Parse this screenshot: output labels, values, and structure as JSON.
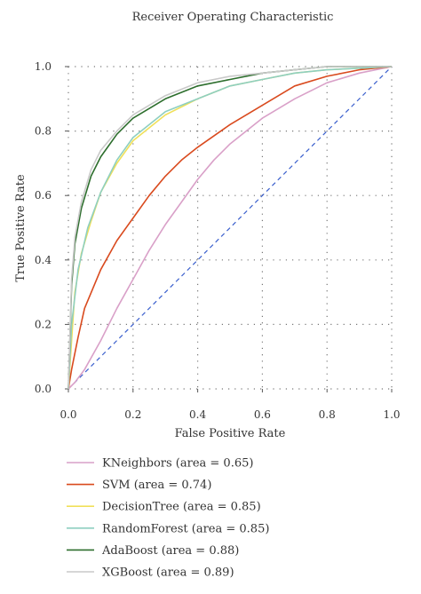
{
  "chart_data": {
    "type": "line",
    "title": "Receiver Operating Characteristic",
    "xlabel": "False Positive Rate",
    "ylabel": "True Positive Rate",
    "xlim": [
      0,
      1
    ],
    "ylim": [
      0,
      1
    ],
    "x_ticks": [
      "0.0",
      "0.2",
      "0.4",
      "0.6",
      "0.8",
      "1.0"
    ],
    "y_ticks": [
      "0.0",
      "0.2",
      "0.4",
      "0.6",
      "0.8",
      "1.0"
    ],
    "grid": "dotted",
    "legend_position": "below",
    "diagonal_color": "#3a5fcd",
    "series": [
      {
        "name": "KNeighbors (area = 0.65)",
        "color": "#d9a0c8",
        "points": [
          [
            0,
            0
          ],
          [
            0.02,
            0.02
          ],
          [
            0.05,
            0.06
          ],
          [
            0.1,
            0.15
          ],
          [
            0.15,
            0.25
          ],
          [
            0.2,
            0.34
          ],
          [
            0.25,
            0.43
          ],
          [
            0.3,
            0.51
          ],
          [
            0.35,
            0.58
          ],
          [
            0.4,
            0.65
          ],
          [
            0.45,
            0.71
          ],
          [
            0.5,
            0.76
          ],
          [
            0.6,
            0.84
          ],
          [
            0.7,
            0.9
          ],
          [
            0.8,
            0.95
          ],
          [
            0.9,
            0.98
          ],
          [
            1,
            1
          ]
        ]
      },
      {
        "name": "SVM (area = 0.74)",
        "color": "#d94a1e",
        "points": [
          [
            0,
            0
          ],
          [
            0.01,
            0.06
          ],
          [
            0.03,
            0.16
          ],
          [
            0.05,
            0.25
          ],
          [
            0.1,
            0.37
          ],
          [
            0.15,
            0.46
          ],
          [
            0.2,
            0.53
          ],
          [
            0.25,
            0.6
          ],
          [
            0.3,
            0.66
          ],
          [
            0.35,
            0.71
          ],
          [
            0.4,
            0.75
          ],
          [
            0.5,
            0.82
          ],
          [
            0.6,
            0.88
          ],
          [
            0.7,
            0.94
          ],
          [
            0.8,
            0.97
          ],
          [
            0.9,
            0.99
          ],
          [
            1,
            1
          ]
        ]
      },
      {
        "name": "DecisionTree (area = 0.85)",
        "color": "#f0e05a",
        "points": [
          [
            0,
            0
          ],
          [
            0.01,
            0.15
          ],
          [
            0.02,
            0.3
          ],
          [
            0.04,
            0.42
          ],
          [
            0.07,
            0.52
          ],
          [
            0.1,
            0.61
          ],
          [
            0.15,
            0.7
          ],
          [
            0.2,
            0.77
          ],
          [
            0.3,
            0.85
          ],
          [
            0.4,
            0.9
          ],
          [
            0.5,
            0.94
          ],
          [
            0.6,
            0.96
          ],
          [
            0.7,
            0.98
          ],
          [
            0.8,
            0.99
          ],
          [
            1,
            1
          ]
        ]
      },
      {
        "name": "RandomForest (area = 0.85)",
        "color": "#8ecfc0",
        "points": [
          [
            0,
            0
          ],
          [
            0.01,
            0.2
          ],
          [
            0.03,
            0.37
          ],
          [
            0.06,
            0.5
          ],
          [
            0.1,
            0.61
          ],
          [
            0.15,
            0.71
          ],
          [
            0.2,
            0.78
          ],
          [
            0.3,
            0.86
          ],
          [
            0.4,
            0.9
          ],
          [
            0.45,
            0.92
          ],
          [
            0.5,
            0.94
          ],
          [
            0.6,
            0.96
          ],
          [
            0.7,
            0.98
          ],
          [
            0.8,
            0.99
          ],
          [
            1,
            1
          ]
        ]
      },
      {
        "name": "AdaBoost (area = 0.88)",
        "color": "#2d6e2d",
        "points": [
          [
            0,
            0
          ],
          [
            0.01,
            0.32
          ],
          [
            0.02,
            0.45
          ],
          [
            0.04,
            0.56
          ],
          [
            0.07,
            0.66
          ],
          [
            0.1,
            0.72
          ],
          [
            0.15,
            0.79
          ],
          [
            0.2,
            0.84
          ],
          [
            0.3,
            0.9
          ],
          [
            0.4,
            0.94
          ],
          [
            0.5,
            0.96
          ],
          [
            0.6,
            0.98
          ],
          [
            0.7,
            0.99
          ],
          [
            0.8,
            1
          ],
          [
            1,
            1
          ]
        ]
      },
      {
        "name": "XGBoost (area = 0.89)",
        "color": "#c9c9c9",
        "points": [
          [
            0,
            0
          ],
          [
            0.01,
            0.34
          ],
          [
            0.02,
            0.47
          ],
          [
            0.04,
            0.58
          ],
          [
            0.07,
            0.68
          ],
          [
            0.1,
            0.74
          ],
          [
            0.15,
            0.8
          ],
          [
            0.2,
            0.85
          ],
          [
            0.3,
            0.91
          ],
          [
            0.4,
            0.95
          ],
          [
            0.5,
            0.97
          ],
          [
            0.6,
            0.98
          ],
          [
            0.7,
            0.99
          ],
          [
            0.8,
            1
          ],
          [
            1,
            1
          ]
        ]
      }
    ]
  }
}
